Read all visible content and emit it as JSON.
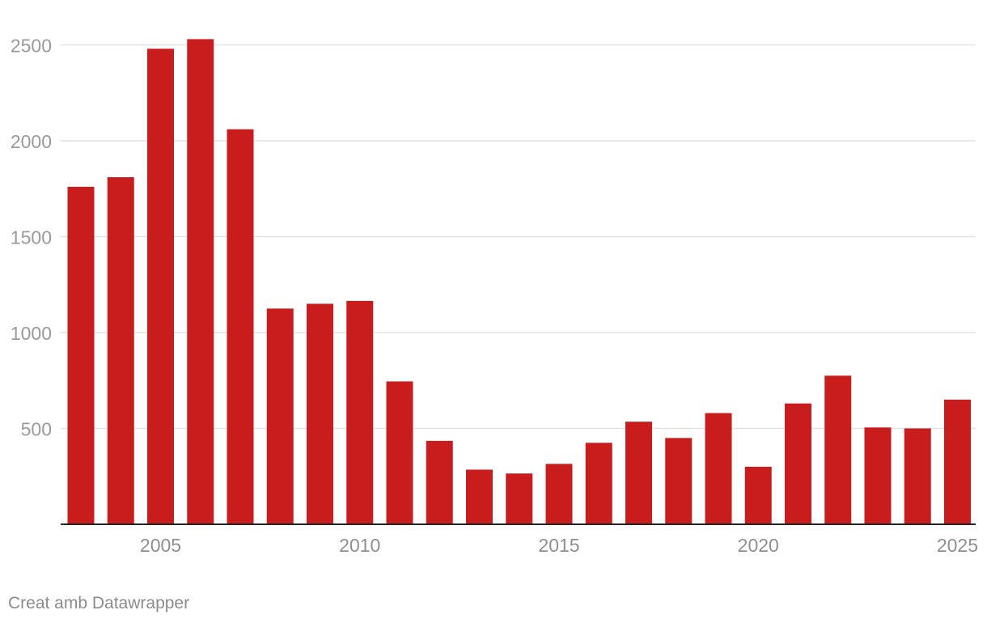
{
  "chart_data": {
    "type": "bar",
    "title": "",
    "xlabel": "",
    "ylabel": "",
    "categories": [
      2003,
      2004,
      2005,
      2006,
      2007,
      2008,
      2009,
      2010,
      2011,
      2012,
      2013,
      2014,
      2015,
      2016,
      2017,
      2018,
      2019,
      2020,
      2021,
      2022,
      2023,
      2024,
      2025
    ],
    "values": [
      1760,
      1810,
      2480,
      2530,
      2060,
      1125,
      1150,
      1165,
      745,
      435,
      285,
      265,
      315,
      425,
      535,
      450,
      580,
      300,
      630,
      775,
      505,
      500,
      650
    ],
    "ylim": [
      0,
      2600
    ],
    "yticks": [
      500,
      1000,
      1500,
      2000,
      2500
    ],
    "xticks": [
      2005,
      2010,
      2015,
      2020,
      2025
    ],
    "bar_color": "#c91d1d",
    "grid": true
  },
  "credit": "Creat amb Datawrapper"
}
